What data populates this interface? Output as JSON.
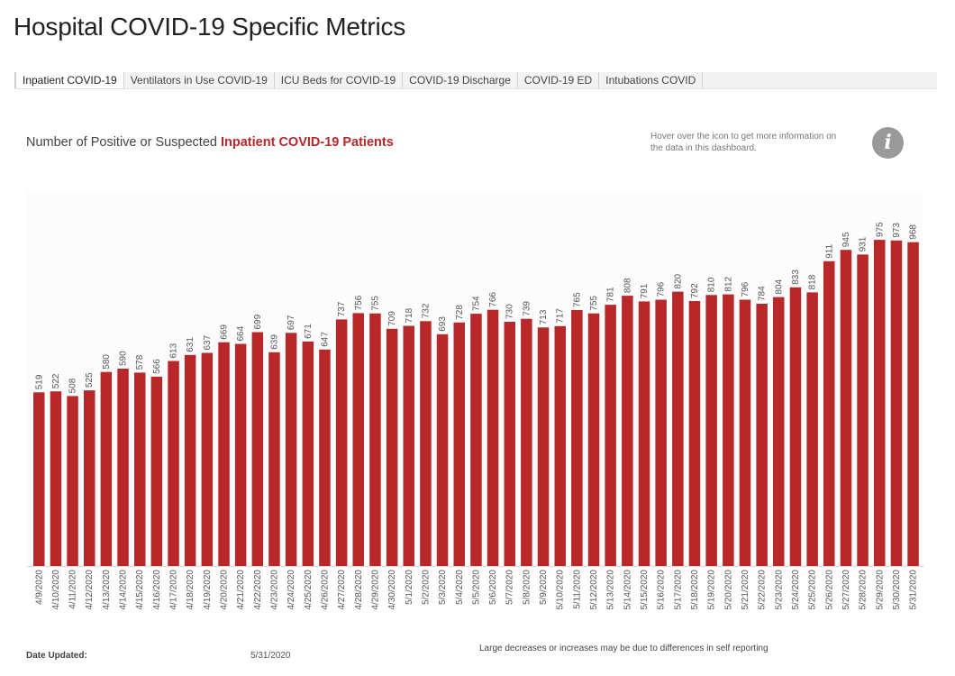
{
  "page": {
    "title": "Hospital COVID-19 Specific Metrics"
  },
  "tabs": [
    {
      "label": "Inpatient COVID-19",
      "active": true
    },
    {
      "label": "Ventilators in Use COVID-19",
      "active": false
    },
    {
      "label": "ICU Beds for COVID-19",
      "active": false
    },
    {
      "label": "COVID-19 Discharge",
      "active": false
    },
    {
      "label": "COVID-19 ED",
      "active": false
    },
    {
      "label": "Intubations COVID",
      "active": false
    }
  ],
  "chart_header": {
    "prefix": "Number of Positive or Suspected ",
    "highlight": "Inpatient COVID-19 Patients"
  },
  "info": {
    "text": "Hover over the icon to get more information on the data in this dashboard.",
    "icon": "info-icon",
    "glyph": "i"
  },
  "chart_data": {
    "type": "bar",
    "title": "Number of Positive or Suspected Inpatient COVID-19 Patients",
    "xlabel": "",
    "ylabel": "",
    "ylim": [
      0,
      1000
    ],
    "grid": false,
    "bar_color": "#b8282a",
    "categories": [
      "4/9/2020",
      "4/10/2020",
      "4/11/2020",
      "4/12/2020",
      "4/13/2020",
      "4/14/2020",
      "4/15/2020",
      "4/16/2020",
      "4/17/2020",
      "4/18/2020",
      "4/19/2020",
      "4/20/2020",
      "4/21/2020",
      "4/22/2020",
      "4/23/2020",
      "4/24/2020",
      "4/25/2020",
      "4/26/2020",
      "4/27/2020",
      "4/28/2020",
      "4/29/2020",
      "4/30/2020",
      "5/1/2020",
      "5/2/2020",
      "5/3/2020",
      "5/4/2020",
      "5/5/2020",
      "5/6/2020",
      "5/7/2020",
      "5/8/2020",
      "5/9/2020",
      "5/10/2020",
      "5/11/2020",
      "5/12/2020",
      "5/13/2020",
      "5/14/2020",
      "5/15/2020",
      "5/16/2020",
      "5/17/2020",
      "5/18/2020",
      "5/19/2020",
      "5/20/2020",
      "5/21/2020",
      "5/22/2020",
      "5/23/2020",
      "5/24/2020",
      "5/25/2020",
      "5/26/2020",
      "5/27/2020",
      "5/28/2020",
      "5/29/2020",
      "5/30/2020",
      "5/31/2020"
    ],
    "values": [
      519,
      522,
      508,
      525,
      580,
      590,
      578,
      566,
      613,
      631,
      637,
      669,
      664,
      699,
      639,
      697,
      671,
      647,
      737,
      756,
      755,
      709,
      718,
      732,
      693,
      728,
      754,
      766,
      730,
      739,
      713,
      717,
      765,
      755,
      781,
      808,
      791,
      796,
      820,
      792,
      810,
      812,
      796,
      784,
      804,
      833,
      818,
      911,
      945,
      931,
      975,
      973,
      968
    ]
  },
  "footer": {
    "date_updated_label": "Date Updated:",
    "date_updated_value": "5/31/2020",
    "note": "Large decreases or increases may be due to differences in self reporting"
  },
  "colors": {
    "accent": "#b8282a",
    "icon_bg": "#9a9a9a"
  }
}
